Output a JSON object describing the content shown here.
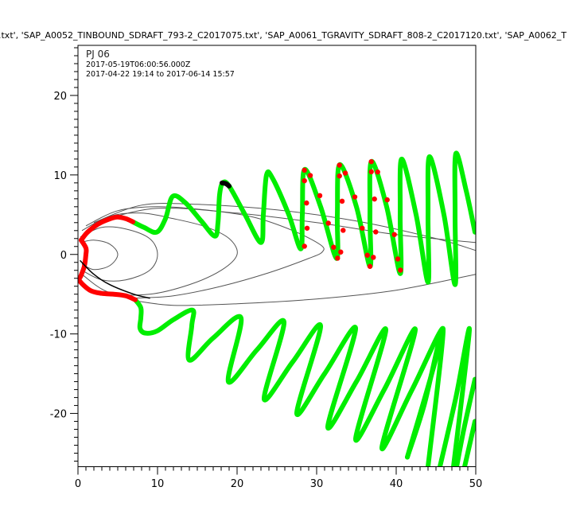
{
  "chart_data": {
    "type": "line",
    "title": ".txt', 'SAP_A0052_TINBOUND_SDRAFT_793-2_C2017075.txt', 'SAP_A0061_TGRAVITY_SDRAFT_808-2_C2017120.txt', 'SAP_A0062_T",
    "annotations": [
      "PJ 06",
      "2017-05-19T06:00:56.000Z",
      "2017-04-22 19:14 to 2017-06-14 15:57"
    ],
    "xlim": [
      0,
      50
    ],
    "ylim": [
      -26.7,
      26.3
    ],
    "xticks": [
      0,
      10,
      20,
      30,
      40,
      50
    ],
    "yticks": [
      -20,
      -10,
      0,
      10,
      20
    ],
    "grid": false,
    "colors": {
      "trajectory": "#00ee00",
      "highlight": "#ff0000",
      "field_lines": "#555555",
      "marker": "#000000"
    },
    "field_lines": [
      [
        [
          0.3,
          1.5
        ],
        [
          2,
          1.8
        ],
        [
          4,
          1.3
        ],
        [
          5,
          0
        ],
        [
          4,
          -1.4
        ],
        [
          2,
          -1.9
        ],
        [
          0.5,
          -1.2
        ]
      ],
      [
        [
          0.3,
          2.2
        ],
        [
          3,
          3.4
        ],
        [
          6,
          3.2
        ],
        [
          9,
          2
        ],
        [
          10,
          0
        ],
        [
          9,
          -2
        ],
        [
          6,
          -3.2
        ],
        [
          3,
          -3.2
        ],
        [
          0.5,
          -2
        ]
      ],
      [
        [
          0.5,
          3
        ],
        [
          4,
          4.8
        ],
        [
          8,
          5.2
        ],
        [
          12,
          4.5
        ],
        [
          16,
          3.5
        ],
        [
          19,
          2
        ],
        [
          20,
          0
        ],
        [
          18,
          -2
        ],
        [
          14,
          -3.8
        ],
        [
          9,
          -5
        ],
        [
          4,
          -4.8
        ],
        [
          0.6,
          -2.6
        ]
      ],
      [
        [
          1,
          3.6
        ],
        [
          5,
          5.5
        ],
        [
          10,
          6
        ],
        [
          16,
          5.6
        ],
        [
          22,
          4.7
        ],
        [
          27,
          3
        ],
        [
          30.5,
          1.2
        ],
        [
          30.7,
          0.3
        ],
        [
          29,
          -0.5
        ],
        [
          24,
          -2.3
        ],
        [
          18,
          -4
        ],
        [
          12,
          -5.2
        ],
        [
          7,
          -5.5
        ]
      ],
      [
        [
          2,
          4
        ],
        [
          8,
          6.2
        ],
        [
          15,
          6.3
        ],
        [
          25,
          5.6
        ],
        [
          35,
          4.2
        ],
        [
          45,
          2
        ],
        [
          50,
          0.5
        ]
      ],
      [
        [
          50,
          -2.5
        ],
        [
          40,
          -4.5
        ],
        [
          30,
          -5.6
        ],
        [
          20,
          -6.2
        ],
        [
          12,
          -6.4
        ],
        [
          7,
          -5.8
        ]
      ],
      [
        [
          3,
          4.3
        ],
        [
          10,
          5.8
        ],
        [
          20,
          5.2
        ],
        [
          30,
          4
        ],
        [
          40,
          2.5
        ],
        [
          50,
          1.5
        ]
      ]
    ],
    "series": [
      {
        "color": "#00ee00",
        "points": [
          [
            6.9,
            4.1
          ],
          [
            8.3,
            3.4
          ],
          [
            9.9,
            2.8
          ],
          [
            11,
            4.5
          ],
          [
            11.9,
            7.3
          ],
          [
            13.5,
            6.5
          ],
          [
            15.5,
            4.2
          ],
          [
            17.2,
            2.3
          ],
          [
            17.6,
            4
          ],
          [
            17.8,
            7.5
          ],
          [
            18.2,
            9.0
          ],
          [
            19,
            8.6
          ],
          [
            21,
            5
          ],
          [
            23,
            1.5
          ],
          [
            23.3,
            5
          ],
          [
            23.7,
            10
          ],
          [
            24.5,
            9.5
          ],
          [
            26.5,
            5
          ],
          [
            28,
            0.7
          ],
          [
            28.2,
            5
          ],
          [
            28.5,
            10.7
          ],
          [
            30.5,
            6
          ],
          [
            32.5,
            -0.5
          ],
          [
            32.6,
            5
          ],
          [
            32.9,
            11.3
          ],
          [
            35,
            6
          ],
          [
            36.7,
            -1.5
          ],
          [
            36.7,
            5
          ],
          [
            36.9,
            11.7
          ],
          [
            38.8,
            6
          ],
          [
            40.5,
            -2.4
          ],
          [
            40.5,
            5
          ],
          [
            40.7,
            12.0
          ],
          [
            42.5,
            5
          ],
          [
            44.0,
            -3.5
          ],
          [
            44.0,
            5
          ],
          [
            44.2,
            12.3
          ],
          [
            46,
            5
          ],
          [
            47.4,
            -3.8
          ],
          [
            47.4,
            5
          ],
          [
            47.5,
            12.7
          ],
          [
            48.8,
            8
          ],
          [
            49.9,
            2.8
          ]
        ]
      },
      {
        "color": "#00ee00",
        "points": [
          [
            7.2,
            -5.7
          ],
          [
            7.9,
            -6.7
          ],
          [
            7.9,
            -8
          ],
          [
            7.8,
            -9.3
          ],
          [
            8.5,
            -9.9
          ],
          [
            10,
            -9.6
          ],
          [
            12,
            -8.2
          ],
          [
            14.4,
            -7.0
          ],
          [
            14.3,
            -9
          ],
          [
            14.0,
            -13.3
          ],
          [
            17,
            -10.5
          ],
          [
            20.5,
            -8.0
          ],
          [
            18.9,
            -16.0
          ],
          [
            22.5,
            -12
          ],
          [
            25.9,
            -8.5
          ],
          [
            23.4,
            -18.2
          ],
          [
            27,
            -13.5
          ],
          [
            30.5,
            -9.0
          ],
          [
            27.5,
            -20.0
          ],
          [
            31,
            -15
          ],
          [
            34.9,
            -9.3
          ],
          [
            31.4,
            -21.7
          ],
          [
            35,
            -16
          ],
          [
            38.7,
            -9.5
          ],
          [
            34.9,
            -23.2
          ],
          [
            38.5,
            -17
          ],
          [
            42.4,
            -9.5
          ],
          [
            38.2,
            -24.3
          ],
          [
            42,
            -17
          ],
          [
            45.9,
            -9.5
          ],
          [
            41.4,
            -25.5
          ]
        ]
      },
      {
        "color": "#00ee00",
        "points": [
          [
            41.4,
            -25.5
          ],
          [
            43.5,
            -19
          ],
          [
            45.9,
            -9.5
          ],
          [
            44.0,
            -26.7
          ]
        ]
      },
      {
        "color": "#00ee00",
        "points": [
          [
            45.5,
            -26.7
          ],
          [
            47.5,
            -18
          ],
          [
            49.2,
            -9.5
          ],
          [
            47.2,
            -26.7
          ]
        ]
      },
      {
        "color": "#00ee00",
        "points": [
          [
            49.9,
            -15.7
          ],
          [
            48.5,
            -22
          ],
          [
            47.6,
            -26.7
          ]
        ]
      },
      {
        "color": "#00ee00",
        "points": [
          [
            49.9,
            -21
          ],
          [
            48.6,
            -26.7
          ]
        ]
      },
      {
        "color": "#ff0000",
        "points": [
          [
            0.4,
            1.8
          ],
          [
            1.2,
            2.8
          ],
          [
            2.5,
            3.8
          ],
          [
            3.8,
            4.4
          ],
          [
            4.9,
            4.7
          ],
          [
            6,
            4.5
          ],
          [
            6.9,
            4.1
          ]
        ]
      },
      {
        "color": "#ff0000",
        "points": [
          [
            0.4,
            1.8
          ],
          [
            1.0,
            0.8
          ],
          [
            1.0,
            0
          ],
          [
            0.8,
            -1.5
          ],
          [
            0.37,
            -2.7
          ],
          [
            0.2,
            -3.3
          ],
          [
            1.5,
            -4.5
          ],
          [
            3,
            -4.9
          ],
          [
            4.5,
            -5.0
          ],
          [
            6,
            -5.2
          ],
          [
            7.2,
            -5.7
          ]
        ]
      },
      {
        "color": "#000000",
        "points": [
          [
            0.3,
            -0.8
          ],
          [
            2,
            -2.5
          ],
          [
            4,
            -3.8
          ],
          [
            7,
            -5.0
          ],
          [
            9,
            -5.5
          ]
        ]
      },
      {
        "color": "#000000",
        "points": [
          [
            18.1,
            9.0
          ],
          [
            18.6,
            8.9
          ],
          [
            19.0,
            8.6
          ]
        ]
      }
    ],
    "red_markers": [
      [
        28.47,
        10.6
      ],
      [
        29.2,
        9.93
      ],
      [
        28.47,
        9.27
      ],
      [
        28.73,
        6.47
      ],
      [
        30.4,
        7.4
      ],
      [
        31.47,
        3.93
      ],
      [
        28.8,
        3.3
      ],
      [
        28.47,
        1.03
      ],
      [
        32.13,
        0.9
      ],
      [
        33.03,
        0.3
      ],
      [
        32.63,
        -0.47
      ],
      [
        32.87,
        11.23
      ],
      [
        33.6,
        10.23
      ],
      [
        32.87,
        9.87
      ],
      [
        34.8,
        7.23
      ],
      [
        33.2,
        6.7
      ],
      [
        35.73,
        3.3
      ],
      [
        33.33,
        3.03
      ],
      [
        36.37,
        -0.1
      ],
      [
        37.13,
        -0.37
      ],
      [
        36.7,
        -1.5
      ],
      [
        36.87,
        11.67
      ],
      [
        37.67,
        10.37
      ],
      [
        36.87,
        10.4
      ],
      [
        37.27,
        6.97
      ],
      [
        38.87,
        6.87
      ],
      [
        37.43,
        2.83
      ],
      [
        39.77,
        2.5
      ],
      [
        40.2,
        -0.57
      ],
      [
        40.53,
        -1.97
      ]
    ]
  }
}
